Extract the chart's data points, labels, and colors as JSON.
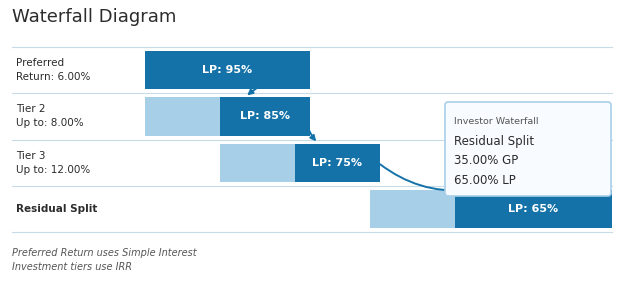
{
  "title": "Waterfall Diagram",
  "title_fontsize": 13,
  "title_fontweight": "normal",
  "title_color": "#2c2c2c",
  "background_color": "#ffffff",
  "footer_lines": [
    "Preferred Return uses Simple Interest",
    "Investment tiers use IRR"
  ],
  "row_labels": [
    "Preferred\nReturn: 6.00%",
    "Tier 2\nUp to: 8.00%",
    "Tier 3\nUp to: 12.00%",
    "Residual Split"
  ],
  "row_label_bold": [
    false,
    false,
    false,
    true
  ],
  "bar_labels": [
    "LP: 95%",
    "LP: 85%",
    "LP: 75%",
    "LP: 65%"
  ],
  "bar_color_dark": "#1472a8",
  "bar_color_light": "#a8cfe8",
  "grid_color": "#c8dce8",
  "annotation_lines": [
    "Investor Waterfall",
    "Residual Split",
    "35.00% GP",
    "65.00% LP"
  ],
  "annotation_line0_small": true,
  "arrow_color": "#1472a8"
}
